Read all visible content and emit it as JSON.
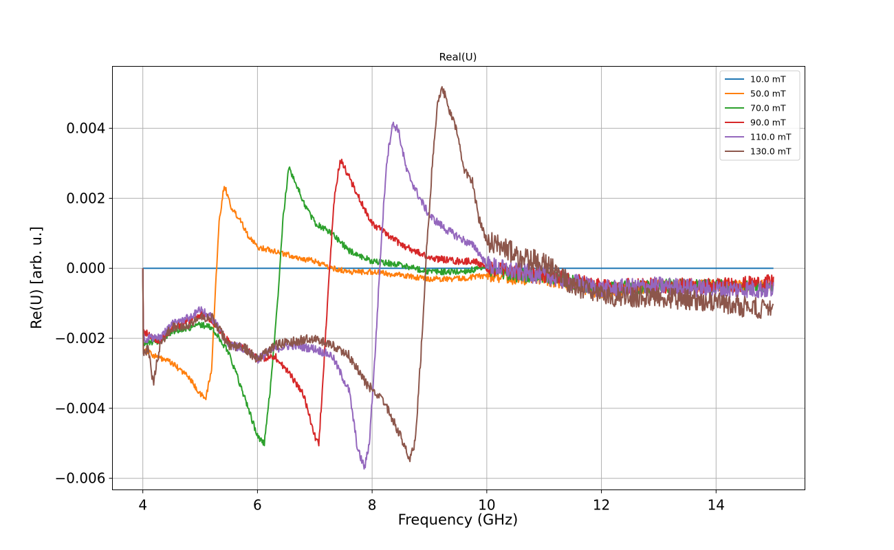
{
  "chart_data": {
    "type": "line",
    "title": "Real(U)",
    "xlabel": "Frequency (GHz)",
    "ylabel": "Re(U) [arb. u.]",
    "xlim": [
      3.47,
      15.55
    ],
    "ylim": [
      -0.00633,
      0.00577
    ],
    "xticks": [
      4,
      6,
      8,
      10,
      12,
      14
    ],
    "xtick_labels": [
      "4",
      "6",
      "8",
      "10",
      "12",
      "14"
    ],
    "yticks": [
      -0.006,
      -0.004,
      -0.002,
      0.0,
      0.002,
      0.004
    ],
    "ytick_labels": [
      "−0.006",
      "−0.004",
      "−0.002",
      "0.000",
      "0.002",
      "0.004"
    ],
    "grid": true,
    "legend_position": "top-right",
    "series": [
      {
        "name": "10.0 mT",
        "color": "#1f77b4",
        "points": [
          [
            4.0,
            0.0
          ],
          [
            4.5,
            0.0
          ],
          [
            5.0,
            0.0
          ],
          [
            6.0,
            0.0
          ],
          [
            7.0,
            0.0
          ],
          [
            8.0,
            0.0
          ],
          [
            9.0,
            0.0
          ],
          [
            10.0,
            0.0
          ],
          [
            11.0,
            0.0
          ],
          [
            12.0,
            0.0
          ],
          [
            13.0,
            0.0
          ],
          [
            14.0,
            0.0
          ],
          [
            15.0,
            0.0
          ]
        ],
        "noise": 0.0
      },
      {
        "name": "50.0 mT",
        "color": "#ff7f0e",
        "points": [
          [
            4.0,
            0.0
          ],
          [
            4.01,
            -0.0023
          ],
          [
            4.2,
            -0.0025
          ],
          [
            4.5,
            -0.0027
          ],
          [
            4.8,
            -0.0031
          ],
          [
            5.0,
            -0.0036
          ],
          [
            5.1,
            -0.0037
          ],
          [
            5.2,
            -0.0029
          ],
          [
            5.27,
            -0.0005
          ],
          [
            5.33,
            0.0013
          ],
          [
            5.42,
            0.0024
          ],
          [
            5.55,
            0.0017
          ],
          [
            5.7,
            0.0014
          ],
          [
            5.85,
            0.0009
          ],
          [
            6.0,
            0.0006
          ],
          [
            6.3,
            0.0005
          ],
          [
            6.7,
            0.0003
          ],
          [
            7.0,
            0.0002
          ],
          [
            7.3,
            0.0
          ],
          [
            7.6,
            -0.0001
          ],
          [
            8.0,
            -0.0001
          ],
          [
            8.5,
            -0.0002
          ],
          [
            9.0,
            -0.0003
          ],
          [
            9.5,
            -0.0003
          ],
          [
            10.0,
            -0.0002
          ],
          [
            10.5,
            -0.0003
          ],
          [
            11.0,
            -0.0003
          ],
          [
            12.0,
            -0.0007
          ],
          [
            13.0,
            -0.0005
          ],
          [
            14.0,
            -0.0005
          ],
          [
            15.0,
            -0.0005
          ]
        ],
        "noise": 8e-05
      },
      {
        "name": "70.0 mT",
        "color": "#2ca02c",
        "points": [
          [
            4.0,
            0.0
          ],
          [
            4.01,
            -0.0022
          ],
          [
            4.1,
            -0.0021
          ],
          [
            4.3,
            -0.0021
          ],
          [
            4.5,
            -0.0018
          ],
          [
            4.8,
            -0.0017
          ],
          [
            5.0,
            -0.0016
          ],
          [
            5.2,
            -0.0017
          ],
          [
            5.5,
            -0.0024
          ],
          [
            5.8,
            -0.0038
          ],
          [
            6.0,
            -0.0048
          ],
          [
            6.12,
            -0.005
          ],
          [
            6.22,
            -0.0035
          ],
          [
            6.35,
            -0.001
          ],
          [
            6.45,
            0.0015
          ],
          [
            6.55,
            0.0029
          ],
          [
            6.65,
            0.0025
          ],
          [
            6.8,
            0.0019
          ],
          [
            7.0,
            0.0013
          ],
          [
            7.3,
            0.001
          ],
          [
            7.6,
            0.0005
          ],
          [
            8.0,
            0.0002
          ],
          [
            8.5,
            0.0001
          ],
          [
            9.0,
            -0.0001
          ],
          [
            9.5,
            -0.0001
          ],
          [
            10.0,
            0.0
          ],
          [
            10.5,
            -0.0002
          ],
          [
            11.0,
            -0.0002
          ],
          [
            12.0,
            -0.0006
          ],
          [
            13.0,
            -0.0005
          ],
          [
            14.0,
            -0.0005
          ],
          [
            15.0,
            -0.0005
          ]
        ],
        "noise": 9e-05
      },
      {
        "name": "90.0 mT",
        "color": "#d62728",
        "points": [
          [
            4.0,
            0.0
          ],
          [
            4.01,
            -0.0018
          ],
          [
            4.1,
            -0.0019
          ],
          [
            4.3,
            -0.0021
          ],
          [
            4.5,
            -0.0017
          ],
          [
            4.8,
            -0.0015
          ],
          [
            5.0,
            -0.0013
          ],
          [
            5.2,
            -0.0015
          ],
          [
            5.5,
            -0.0021
          ],
          [
            5.8,
            -0.0023
          ],
          [
            6.0,
            -0.0026
          ],
          [
            6.3,
            -0.0025
          ],
          [
            6.6,
            -0.0031
          ],
          [
            6.8,
            -0.0036
          ],
          [
            7.0,
            -0.0048
          ],
          [
            7.07,
            -0.005
          ],
          [
            7.15,
            -0.003
          ],
          [
            7.25,
            -0.0002
          ],
          [
            7.35,
            0.0022
          ],
          [
            7.45,
            0.0031
          ],
          [
            7.6,
            0.0026
          ],
          [
            7.8,
            0.0019
          ],
          [
            8.0,
            0.0013
          ],
          [
            8.3,
            0.0009
          ],
          [
            8.6,
            0.0006
          ],
          [
            9.0,
            0.0003
          ],
          [
            9.5,
            0.0002
          ],
          [
            9.8,
            0.0002
          ],
          [
            10.0,
            0.0
          ],
          [
            10.5,
            -0.0001
          ],
          [
            11.0,
            -0.0002
          ],
          [
            12.0,
            -0.0005
          ],
          [
            13.0,
            -0.0005
          ],
          [
            14.0,
            -0.0005
          ],
          [
            15.0,
            -0.0004
          ]
        ],
        "noise": 0.0001
      },
      {
        "name": "110.0 mT",
        "color": "#9467bd",
        "points": [
          [
            4.0,
            0.0
          ],
          [
            4.01,
            -0.002
          ],
          [
            4.1,
            -0.002
          ],
          [
            4.3,
            -0.002
          ],
          [
            4.5,
            -0.0016
          ],
          [
            4.8,
            -0.0014
          ],
          [
            5.0,
            -0.0012
          ],
          [
            5.2,
            -0.0014
          ],
          [
            5.5,
            -0.0022
          ],
          [
            5.8,
            -0.0023
          ],
          [
            6.0,
            -0.0026
          ],
          [
            6.3,
            -0.0023
          ],
          [
            6.6,
            -0.0022
          ],
          [
            7.0,
            -0.0023
          ],
          [
            7.3,
            -0.0025
          ],
          [
            7.6,
            -0.0035
          ],
          [
            7.75,
            -0.0052
          ],
          [
            7.87,
            -0.0057
          ],
          [
            7.95,
            -0.005
          ],
          [
            8.05,
            -0.0025
          ],
          [
            8.15,
            0.0005
          ],
          [
            8.25,
            0.003
          ],
          [
            8.35,
            0.0041
          ],
          [
            8.45,
            0.004
          ],
          [
            8.6,
            0.0028
          ],
          [
            8.8,
            0.0021
          ],
          [
            9.0,
            0.0015
          ],
          [
            9.3,
            0.0011
          ],
          [
            9.6,
            0.0008
          ],
          [
            9.8,
            0.0006
          ],
          [
            10.0,
            0.0001
          ],
          [
            10.5,
            -0.0001
          ],
          [
            11.0,
            -0.0002
          ],
          [
            12.0,
            -0.0006
          ],
          [
            13.0,
            -0.0005
          ],
          [
            14.0,
            -0.0006
          ],
          [
            15.0,
            -0.0006
          ]
        ],
        "noise": 0.00012
      },
      {
        "name": "130.0 mT",
        "color": "#8c564b",
        "points": [
          [
            4.0,
            0.0
          ],
          [
            4.01,
            -0.0024
          ],
          [
            4.1,
            -0.0023
          ],
          [
            4.18,
            -0.0033
          ],
          [
            4.3,
            -0.0022
          ],
          [
            4.5,
            -0.0017
          ],
          [
            4.8,
            -0.0016
          ],
          [
            5.0,
            -0.0014
          ],
          [
            5.2,
            -0.0014
          ],
          [
            5.5,
            -0.0022
          ],
          [
            5.8,
            -0.0023
          ],
          [
            6.0,
            -0.0026
          ],
          [
            6.3,
            -0.0022
          ],
          [
            6.6,
            -0.0021
          ],
          [
            7.0,
            -0.002
          ],
          [
            7.3,
            -0.0022
          ],
          [
            7.6,
            -0.0025
          ],
          [
            7.9,
            -0.0033
          ],
          [
            8.2,
            -0.0038
          ],
          [
            8.5,
            -0.0048
          ],
          [
            8.65,
            -0.0055
          ],
          [
            8.75,
            -0.005
          ],
          [
            8.85,
            -0.0025
          ],
          [
            8.95,
            0.0005
          ],
          [
            9.05,
            0.003
          ],
          [
            9.15,
            0.0048
          ],
          [
            9.22,
            0.0052
          ],
          [
            9.35,
            0.0045
          ],
          [
            9.5,
            0.0038
          ],
          [
            9.6,
            0.0028
          ],
          [
            9.75,
            0.0025
          ],
          [
            9.85,
            0.0015
          ],
          [
            10.0,
            0.0008
          ],
          [
            10.3,
            0.0006
          ],
          [
            10.6,
            0.0003
          ],
          [
            11.0,
            0.0002
          ],
          [
            11.5,
            -0.0005
          ],
          [
            12.0,
            -0.0008
          ],
          [
            13.0,
            -0.0008
          ],
          [
            14.0,
            -0.001
          ],
          [
            15.0,
            -0.0012
          ]
        ],
        "noise": 0.00014
      }
    ]
  }
}
